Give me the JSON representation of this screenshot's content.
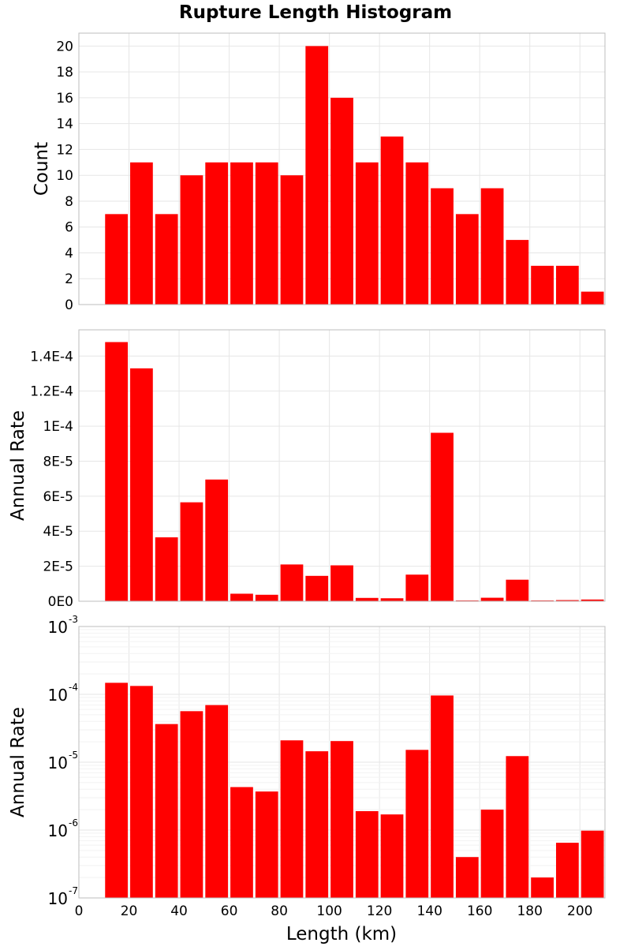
{
  "colors": {
    "bar": "#ff0000",
    "grid": "#e6e6e6",
    "minor_grid": "#f2f2f2",
    "frame": "#bdbdbd"
  },
  "chart_data": {
    "title": "Rupture Length Histogram",
    "xlabel": "Length (km)",
    "x_ticks": [
      "0",
      "20",
      "40",
      "60",
      "80",
      "100",
      "120",
      "140",
      "160",
      "180",
      "200"
    ],
    "xlim": [
      0,
      210
    ],
    "bin_width": 10,
    "bin_lefts": [
      10,
      20,
      30,
      40,
      50,
      60,
      70,
      80,
      90,
      100,
      110,
      120,
      130,
      140,
      150,
      160,
      170,
      180,
      190,
      200
    ],
    "panels": [
      {
        "type": "bar",
        "ylabel": "Count",
        "scale": "linear",
        "ylim": [
          0,
          21
        ],
        "y_ticks": [
          "0",
          "2",
          "4",
          "6",
          "8",
          "10",
          "12",
          "14",
          "16",
          "18",
          "20"
        ],
        "values": [
          7,
          11,
          7,
          10,
          11,
          11,
          11,
          10,
          20,
          16,
          11,
          13,
          11,
          9,
          7,
          9,
          5,
          3,
          3,
          1
        ]
      },
      {
        "type": "bar",
        "ylabel": "Annual Rate",
        "scale": "linear",
        "ylim": [
          0,
          0.000155
        ],
        "y_ticks": [
          "0E0",
          "2E-5",
          "4E-5",
          "6E-5",
          "8E-5",
          "1E-4",
          "1.2E-4",
          "1.4E-4"
        ],
        "values": [
          0.000148,
          0.000133,
          3.65e-05,
          5.65e-05,
          6.95e-05,
          4.3e-06,
          3.7e-06,
          2.1e-05,
          1.45e-05,
          2.05e-05,
          1.9e-06,
          1.7e-06,
          1.52e-05,
          9.62e-05,
          4e-07,
          2e-06,
          1.23e-05,
          2e-07,
          6.5e-07,
          9.8e-07
        ]
      },
      {
        "type": "bar",
        "ylabel": "Annual Rate",
        "scale": "log",
        "ylim": [
          1e-07,
          0.001
        ],
        "y_ticks": [
          {
            "base": "10",
            "exp": "-7"
          },
          {
            "base": "10",
            "exp": "-6"
          },
          {
            "base": "10",
            "exp": "-5"
          },
          {
            "base": "10",
            "exp": "-4"
          },
          {
            "base": "10",
            "exp": "-3"
          }
        ],
        "values": [
          0.000148,
          0.000133,
          3.65e-05,
          5.65e-05,
          6.95e-05,
          4.3e-06,
          3.7e-06,
          2.1e-05,
          1.45e-05,
          2.05e-05,
          1.9e-06,
          1.7e-06,
          1.52e-05,
          9.62e-05,
          4e-07,
          2e-06,
          1.23e-05,
          2e-07,
          6.5e-07,
          9.8e-07
        ]
      }
    ]
  }
}
